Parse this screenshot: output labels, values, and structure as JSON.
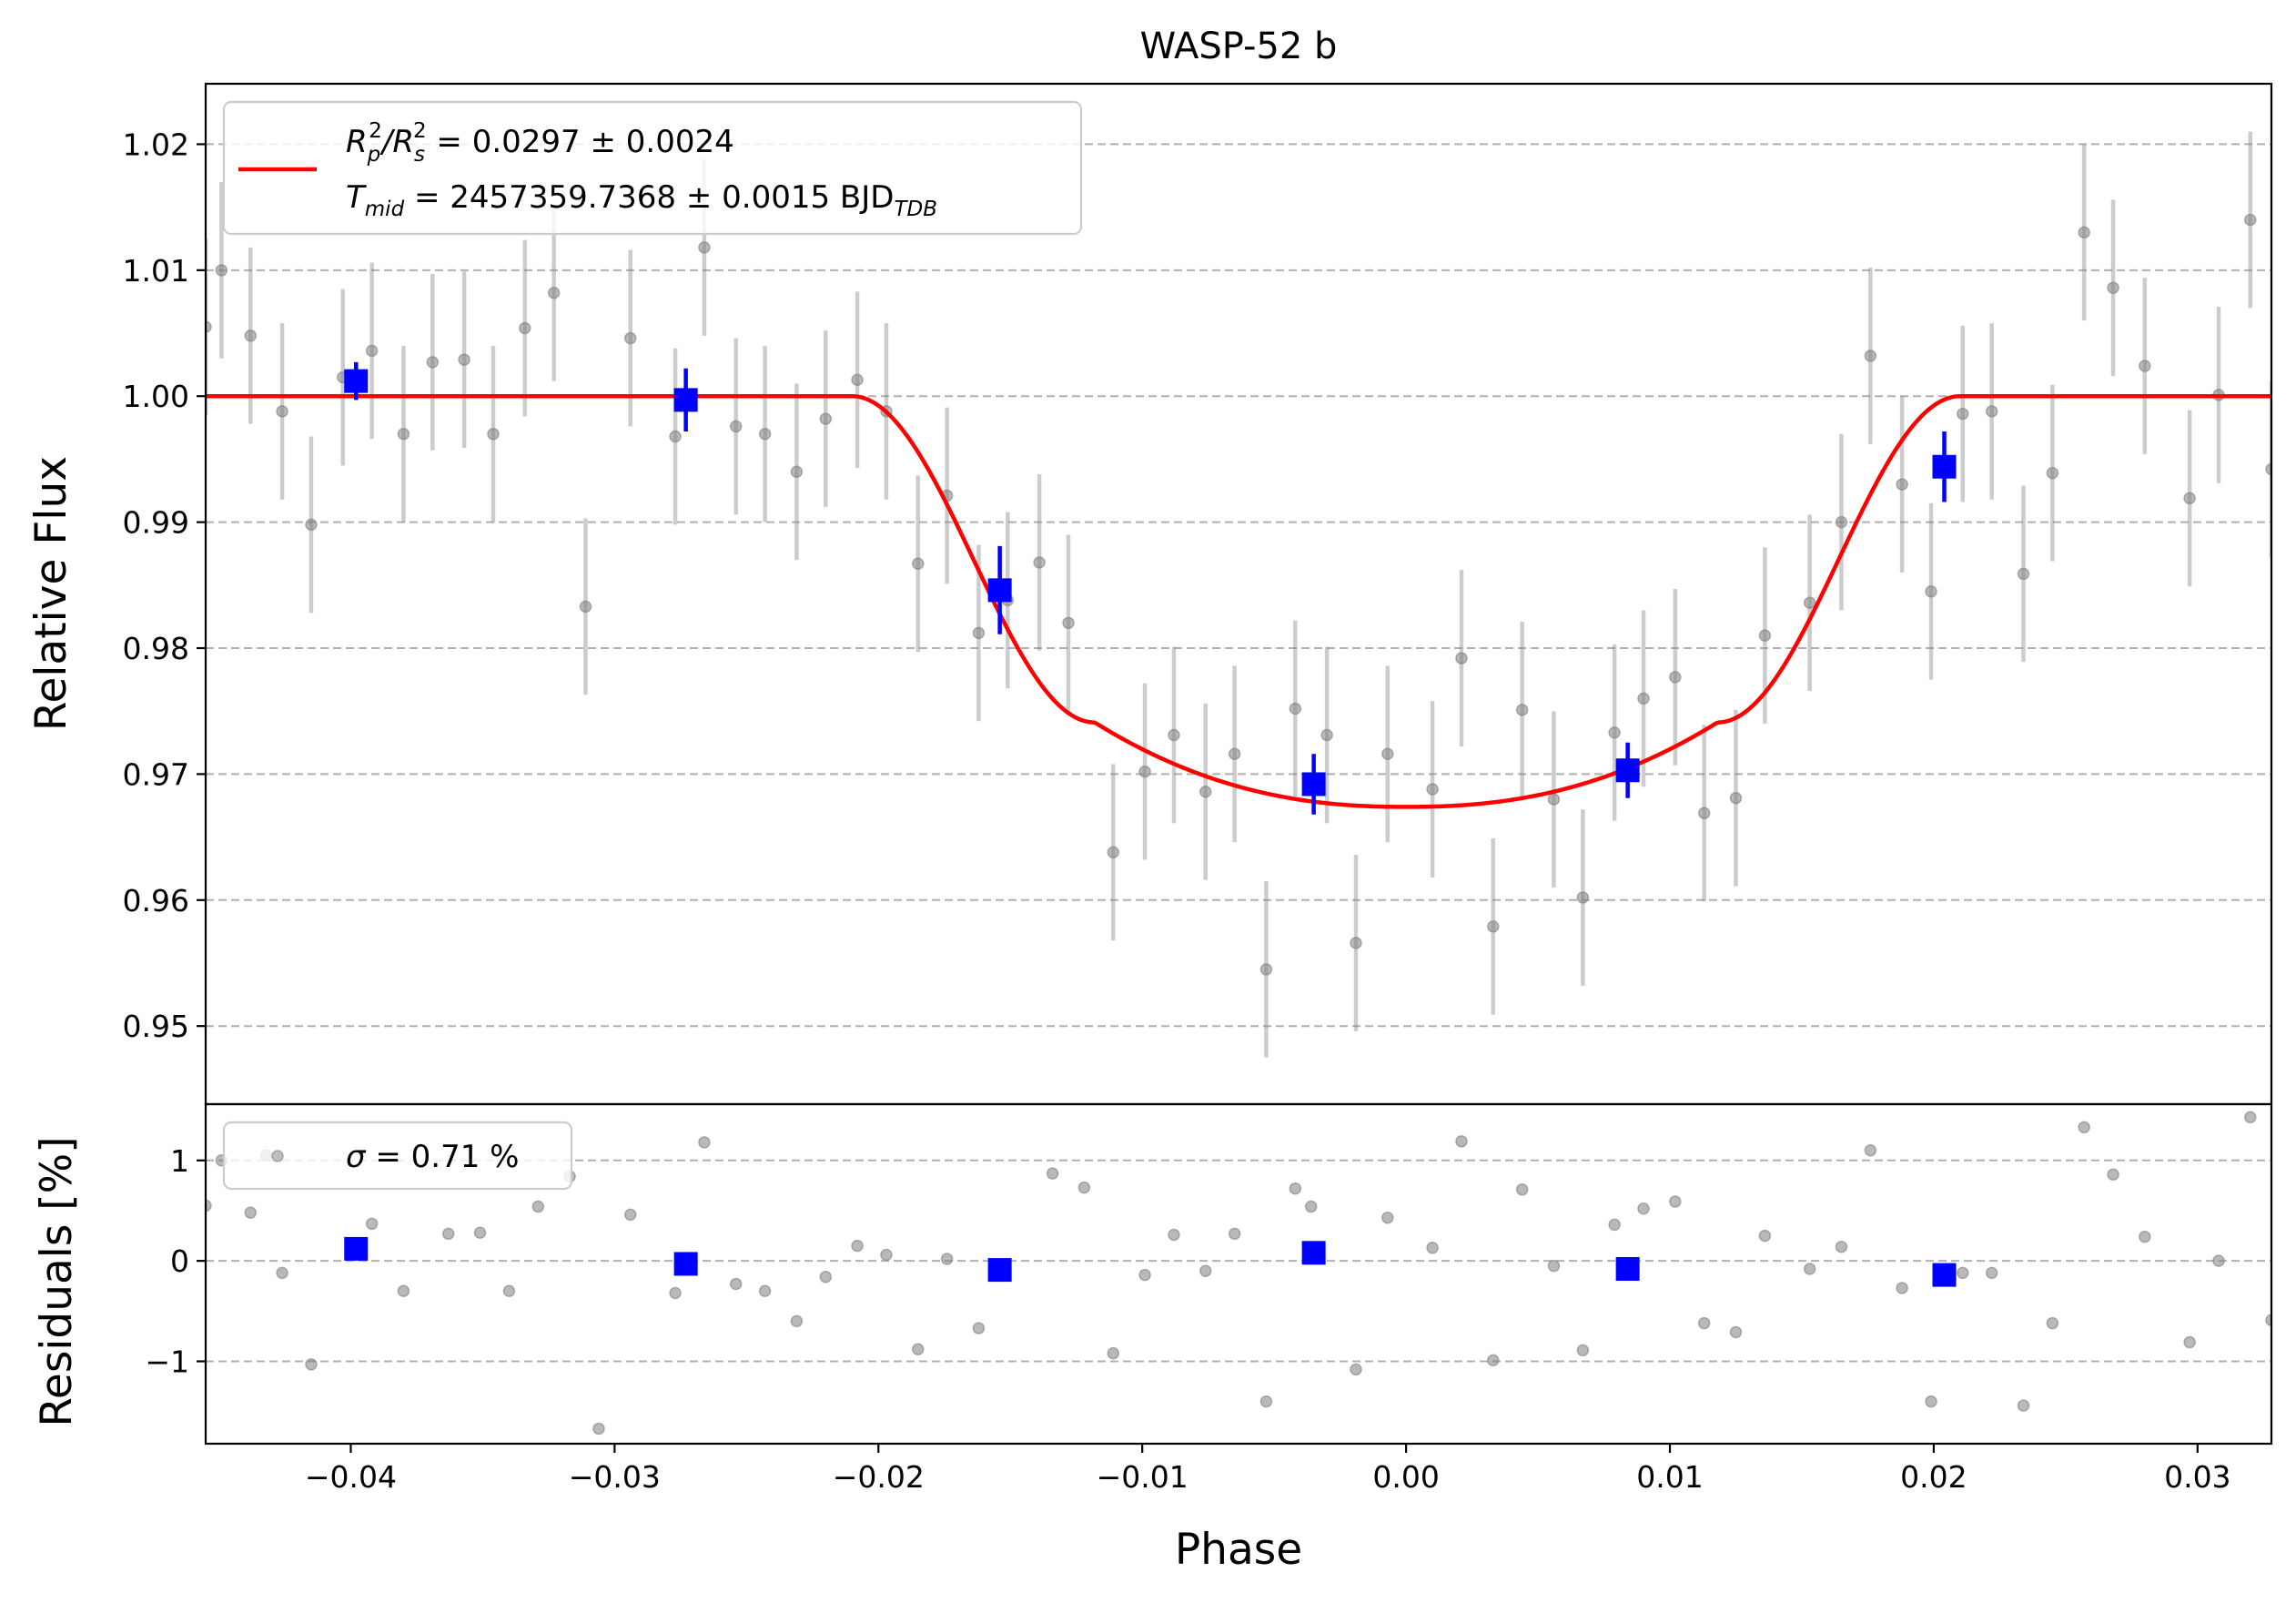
{
  "chart_data": {
    "type": "scatter",
    "title": "WASP-52 b",
    "xlabel": "Phase",
    "xlim": [
      -0.0455,
      0.0328
    ],
    "x_ticks": [
      -0.04,
      -0.03,
      -0.02,
      -0.01,
      0.0,
      0.01,
      0.02,
      0.03
    ],
    "x_tick_labels": [
      "−0.04",
      "−0.03",
      "−0.02",
      "−0.01",
      "0.00",
      "0.01",
      "0.02",
      "0.03"
    ],
    "grid": "horizontal dashed",
    "colors": {
      "data": "#808080",
      "binned": "#0000ff",
      "model": "#ff0000"
    },
    "panels": [
      {
        "name": "flux",
        "ylabel": "Relative Flux",
        "ylim": [
          0.9438,
          1.0248
        ],
        "y_ticks": [
          0.95,
          0.96,
          0.97,
          0.98,
          0.99,
          1.0,
          1.01,
          1.02
        ],
        "y_tick_labels": [
          "0.95",
          "0.96",
          "0.97",
          "0.98",
          "0.99",
          "1.00",
          "1.01",
          "1.02"
        ],
        "legend": {
          "position": "top-left",
          "line1_main": "R",
          "line1_sub1": "p",
          "line1_sup1": "2",
          "line1_mid": "/R",
          "line1_sub2": "s",
          "line1_sup2": "2",
          "line1_rest": " = 0.0297 ± 0.0024",
          "line2_main": "T",
          "line2_sub": "mid",
          "line2_rest": " = 2457359.7368 ± 0.0015 BJD",
          "line2_tail_sub": "TDB"
        },
        "data_points": [
          [
            -0.0455,
            1.0055
          ],
          [
            -0.0449,
            1.01
          ],
          [
            -0.0438,
            1.0048
          ],
          [
            -0.0426,
            0.9988
          ],
          [
            -0.0415,
            0.9898
          ],
          [
            -0.0403,
            1.0015
          ],
          [
            -0.0392,
            1.0036
          ],
          [
            -0.038,
            0.997
          ],
          [
            -0.0369,
            1.0027
          ],
          [
            -0.0357,
            1.0029
          ],
          [
            -0.0346,
            0.997
          ],
          [
            -0.0334,
            1.0054
          ],
          [
            -0.0323,
            1.0082
          ],
          [
            -0.0311,
            0.9833
          ],
          [
            -0.0294,
            1.0046
          ],
          [
            -0.0277,
            0.9968
          ],
          [
            -0.0266,
            1.0118
          ],
          [
            -0.0254,
            0.9976
          ],
          [
            -0.0243,
            0.997
          ],
          [
            -0.0231,
            0.994
          ],
          [
            -0.022,
            0.9982
          ],
          [
            -0.0208,
            1.0013
          ],
          [
            -0.0197,
            0.9988
          ],
          [
            -0.0185,
            0.9867
          ],
          [
            -0.0174,
            0.9921
          ],
          [
            -0.0162,
            0.9812
          ],
          [
            -0.0151,
            0.9838
          ],
          [
            -0.0139,
            0.9868
          ],
          [
            -0.0128,
            0.982
          ],
          [
            -0.0111,
            0.9638
          ],
          [
            -0.0099,
            0.9702
          ],
          [
            -0.0088,
            0.9731
          ],
          [
            -0.0076,
            0.9686
          ],
          [
            -0.0065,
            0.9716
          ],
          [
            -0.0053,
            0.9545
          ],
          [
            -0.0042,
            0.9752
          ],
          [
            -0.003,
            0.9731
          ],
          [
            -0.0019,
            0.9566
          ],
          [
            -0.0007,
            0.9716
          ],
          [
            0.001,
            0.9688
          ],
          [
            0.0021,
            0.9792
          ],
          [
            0.0033,
            0.9579
          ],
          [
            0.0044,
            0.9751
          ],
          [
            0.0056,
            0.968
          ],
          [
            0.0067,
            0.9602
          ],
          [
            0.0079,
            0.9733
          ],
          [
            0.009,
            0.976
          ],
          [
            0.0102,
            0.9777
          ],
          [
            0.0113,
            0.9669
          ],
          [
            0.0125,
            0.9681
          ],
          [
            0.0136,
            0.981
          ],
          [
            0.0153,
            0.9836
          ],
          [
            0.0165,
            0.99
          ],
          [
            0.0176,
            1.0032
          ],
          [
            0.0188,
            0.993
          ],
          [
            0.0199,
            0.9845
          ],
          [
            0.0211,
            0.9986
          ],
          [
            0.0222,
            0.9988
          ],
          [
            0.0234,
            0.9859
          ],
          [
            0.0245,
            0.9939
          ],
          [
            0.0257,
            1.013
          ],
          [
            0.0268,
            1.0086
          ],
          [
            0.028,
            1.0024
          ],
          [
            0.0297,
            0.9919
          ],
          [
            0.0308,
            1.0001
          ],
          [
            0.032,
            1.014
          ],
          [
            0.0328,
            0.9942
          ]
        ],
        "data_error": 0.007,
        "binned_points": [
          [
            -0.0398,
            1.0012,
            0.0015
          ],
          [
            -0.0273,
            0.9997,
            0.0025
          ],
          [
            -0.0154,
            0.9846,
            0.0035
          ],
          [
            -0.0035,
            0.9692,
            0.0024
          ],
          [
            0.0084,
            0.9703,
            0.0022
          ],
          [
            0.0204,
            0.9944,
            0.0028
          ]
        ],
        "model_transit": {
          "baseline": 1.0,
          "depth_center": 0.9674,
          "t1": -0.021,
          "t2": -0.0118,
          "t3": 0.0118,
          "t4": 0.021,
          "contact_flux": 0.9741
        }
      },
      {
        "name": "residuals",
        "ylabel": "Residuals [%]",
        "ylim": [
          -1.82,
          1.56
        ],
        "y_ticks": [
          -1,
          0,
          1
        ],
        "y_tick_labels": [
          "−1",
          "0",
          "1"
        ],
        "legend": {
          "position": "top-left",
          "sigma_symbol": "σ",
          "sigma_text": " = 0.71 %"
        },
        "data_points": [
          [
            -0.0455,
            0.55
          ],
          [
            -0.0449,
            1.0
          ],
          [
            -0.0438,
            0.48
          ],
          [
            -0.0432,
            1.05
          ],
          [
            -0.0426,
            -0.12
          ],
          [
            -0.0415,
            -1.03
          ],
          [
            -0.0392,
            0.37
          ],
          [
            -0.038,
            -0.3
          ],
          [
            -0.0363,
            0.27
          ],
          [
            -0.0351,
            0.28
          ],
          [
            -0.034,
            -0.3
          ],
          [
            -0.0329,
            0.54
          ],
          [
            -0.0317,
            0.84
          ],
          [
            -0.0306,
            -1.67
          ],
          [
            -0.0294,
            0.46
          ],
          [
            -0.0277,
            -0.32
          ],
          [
            -0.0266,
            1.18
          ],
          [
            -0.0254,
            -0.23
          ],
          [
            -0.0243,
            -0.3
          ],
          [
            -0.0231,
            -0.6
          ],
          [
            -0.022,
            -0.16
          ],
          [
            -0.0208,
            0.15
          ],
          [
            -0.0197,
            0.06
          ],
          [
            -0.0185,
            -0.88
          ],
          [
            -0.0174,
            0.02
          ],
          [
            -0.0162,
            -0.67
          ],
          [
            -0.0134,
            0.87
          ],
          [
            -0.0122,
            0.73
          ],
          [
            -0.0111,
            -0.92
          ],
          [
            -0.0099,
            -0.14
          ],
          [
            -0.0088,
            0.26
          ],
          [
            -0.0076,
            -0.1
          ],
          [
            -0.0065,
            0.27
          ],
          [
            -0.0053,
            -1.4
          ],
          [
            -0.0042,
            0.72
          ],
          [
            -0.0036,
            0.54
          ],
          [
            -0.0019,
            -1.08
          ],
          [
            -0.0007,
            0.43
          ],
          [
            0.001,
            0.13
          ],
          [
            0.0021,
            1.19
          ],
          [
            0.0033,
            -0.99
          ],
          [
            0.0044,
            0.71
          ],
          [
            0.0056,
            -0.05
          ],
          [
            0.0067,
            -0.89
          ],
          [
            0.0079,
            0.36
          ],
          [
            0.009,
            0.52
          ],
          [
            0.0102,
            0.59
          ],
          [
            0.0113,
            -0.62
          ],
          [
            0.0125,
            -0.71
          ],
          [
            0.0136,
            0.25
          ],
          [
            0.0153,
            -0.08
          ],
          [
            0.0165,
            0.14
          ],
          [
            0.0176,
            1.1
          ],
          [
            0.0188,
            -0.27
          ],
          [
            0.0199,
            -1.4
          ],
          [
            0.0211,
            -0.12
          ],
          [
            0.0222,
            -0.12
          ],
          [
            0.0234,
            -1.44
          ],
          [
            0.0245,
            -0.62
          ],
          [
            0.0257,
            1.33
          ],
          [
            0.0268,
            0.86
          ],
          [
            0.028,
            0.24
          ],
          [
            0.0297,
            -0.81
          ],
          [
            0.0308,
            0.0
          ],
          [
            0.032,
            1.43
          ],
          [
            0.0328,
            -0.59
          ]
        ],
        "binned_points": [
          [
            -0.0398,
            0.12
          ],
          [
            -0.0273,
            -0.03
          ],
          [
            -0.0154,
            -0.09
          ],
          [
            -0.0035,
            0.08
          ],
          [
            0.0084,
            -0.08
          ],
          [
            0.0204,
            -0.14
          ]
        ]
      }
    ]
  }
}
